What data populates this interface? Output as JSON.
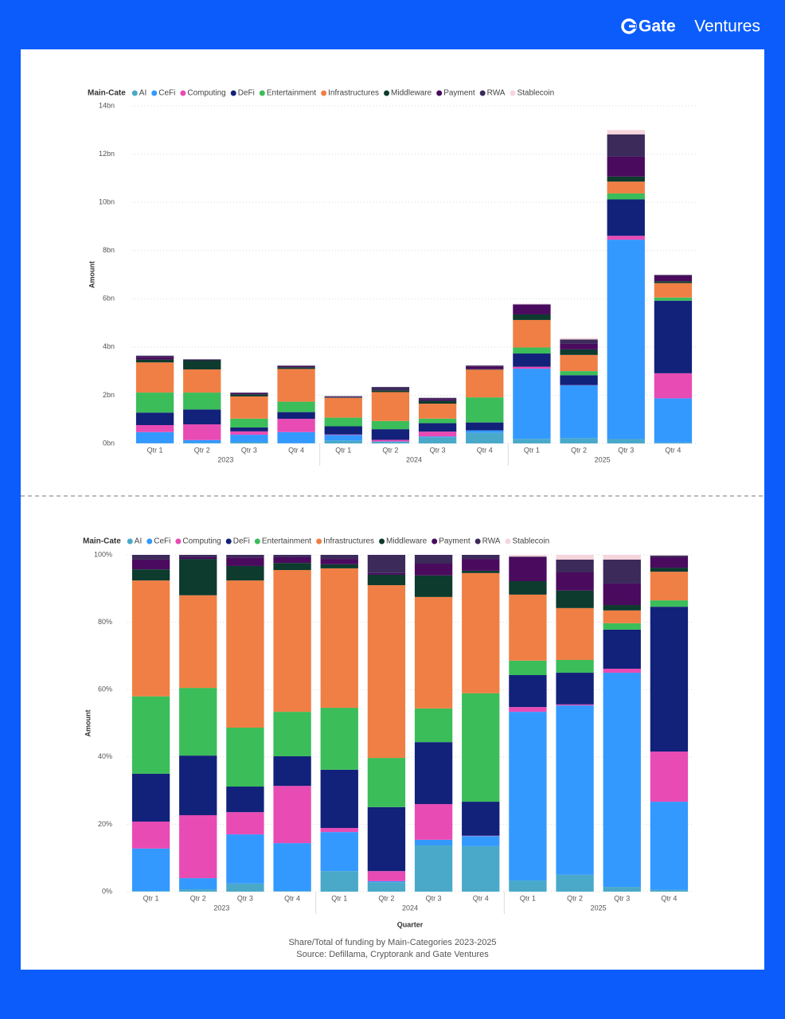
{
  "brand": {
    "name": "Gate",
    "sub": "Ventures"
  },
  "caption": [
    "Share/Total of funding by Main-Categories 2023-2025",
    "Source: Defillama, Cryptorank and Gate Ventures"
  ],
  "chart_data": [
    {
      "type": "bar",
      "stacked": true,
      "legend_title": "Main-Cate",
      "legend_position": "top-left",
      "y_label": "Amount",
      "grid": true,
      "categories": [
        "Qtr 1",
        "Qtr 2",
        "Qtr 3",
        "Qtr 4",
        "Qtr 1",
        "Qtr 2",
        "Qtr 3",
        "Qtr 4",
        "Qtr 1",
        "Qtr 2",
        "Qtr 3",
        "Qtr 4"
      ],
      "groups": [
        "2023",
        "2024",
        "2025"
      ],
      "ylim": [
        0,
        14
      ],
      "yticks": [
        {
          "value": 0,
          "label": "0bn"
        },
        {
          "value": 2,
          "label": "2bn"
        },
        {
          "value": 4,
          "label": "4bn"
        },
        {
          "value": 6,
          "label": "6bn"
        },
        {
          "value": 8,
          "label": "8bn"
        },
        {
          "value": 10,
          "label": "10bn"
        },
        {
          "value": 12,
          "label": "12bn"
        },
        {
          "value": 14,
          "label": "14bn"
        }
      ],
      "series": [
        {
          "name": "AI",
          "color": "#4aa9c9",
          "values": [
            0.01,
            0.02,
            0.05,
            0.01,
            0.12,
            0.07,
            0.26,
            0.44,
            0.19,
            0.22,
            0.18,
            0.04
          ]
        },
        {
          "name": "CeFi",
          "color": "#3399ff",
          "values": [
            0.46,
            0.12,
            0.31,
            0.46,
            0.23,
            0.01,
            0.03,
            0.1,
            2.91,
            2.19,
            8.27,
            1.83
          ]
        },
        {
          "name": "Computing",
          "color": "#e84bb4",
          "values": [
            0.29,
            0.65,
            0.14,
            0.55,
            0.02,
            0.07,
            0.2,
            0,
            0.08,
            0.01,
            0.16,
            1.04
          ]
        },
        {
          "name": "DeFi",
          "color": "#12217a",
          "values": [
            0.52,
            0.62,
            0.16,
            0.28,
            0.34,
            0.44,
            0.35,
            0.33,
            0.55,
            0.41,
            1.51,
            3.01
          ]
        },
        {
          "name": "Entertainment",
          "color": "#3bbd5a",
          "values": [
            0.83,
            0.7,
            0.37,
            0.43,
            0.36,
            0.34,
            0.19,
            1.04,
            0.25,
            0.17,
            0.25,
            0.13
          ]
        },
        {
          "name": "Infrastructures",
          "color": "#f07f45",
          "values": [
            1.25,
            0.96,
            0.92,
            1.36,
            0.82,
            1.2,
            0.62,
            1.15,
            1.14,
            0.67,
            0.49,
            0.6
          ]
        },
        {
          "name": "Middleware",
          "color": "#0d3b2e",
          "values": [
            0.12,
            0.38,
            0.09,
            0.07,
            0.02,
            0.07,
            0.12,
            0.02,
            0.23,
            0.23,
            0.21,
            0.08
          ]
        },
        {
          "name": "Payment",
          "color": "#4a0a5e",
          "values": [
            0.11,
            0.02,
            0.05,
            0.05,
            0.03,
            0.01,
            0.07,
            0.11,
            0.41,
            0.24,
            0.83,
            0.22
          ]
        },
        {
          "name": "RWA",
          "color": "#3b2a5a",
          "values": [
            0.05,
            0.02,
            0.02,
            0.02,
            0.02,
            0.13,
            0.05,
            0.04,
            0.01,
            0.17,
            0.92,
            0.04
          ]
        },
        {
          "name": "Stablecoin",
          "color": "#f5d5dc",
          "values": [
            0,
            0,
            0,
            0,
            0,
            0,
            0,
            0,
            0.03,
            0.06,
            0.18,
            0.01
          ]
        }
      ]
    },
    {
      "type": "bar",
      "stacked": true,
      "legend_title": "Main-Cate",
      "legend_position": "top-left",
      "y_label": "Amount",
      "x_label": "Quarter",
      "grid": true,
      "categories": [
        "Qtr 1",
        "Qtr 2",
        "Qtr 3",
        "Qtr 4",
        "Qtr 1",
        "Qtr 2",
        "Qtr 3",
        "Qtr 4",
        "Qtr 1",
        "Qtr 2",
        "Qtr 3",
        "Qtr 4"
      ],
      "groups": [
        "2023",
        "2024",
        "2025"
      ],
      "ylim": [
        0,
        100
      ],
      "yticks": [
        {
          "value": 0,
          "label": "0%"
        },
        {
          "value": 20,
          "label": "20%"
        },
        {
          "value": 40,
          "label": "40%"
        },
        {
          "value": 60,
          "label": "60%"
        },
        {
          "value": 80,
          "label": "80%"
        },
        {
          "value": 100,
          "label": "100%"
        }
      ],
      "series": [
        {
          "name": "AI",
          "color": "#4aa9c9",
          "values": [
            0.2,
            0.7,
            2.4,
            0.2,
            6.1,
            2.8,
            13.7,
            13.5,
            3.3,
            5,
            1.4,
            0.5
          ]
        },
        {
          "name": "CeFi",
          "color": "#3399ff",
          "values": [
            12.6,
            3.3,
            14.6,
            14.2,
            11.6,
            0.3,
            1.7,
            3,
            50.1,
            50.3,
            63.6,
            26.2
          ]
        },
        {
          "name": "Computing",
          "color": "#e84bb4",
          "values": [
            8,
            18.7,
            6.6,
            17,
            1.2,
            3,
            10.6,
            0.1,
            1.4,
            0.3,
            1.2,
            14.9
          ]
        },
        {
          "name": "DeFi",
          "color": "#12217a",
          "values": [
            14.2,
            17.7,
            7.6,
            8.8,
            17.3,
            19,
            18.4,
            10.1,
            9.5,
            9.4,
            11.6,
            43
          ]
        },
        {
          "name": "Entertainment",
          "color": "#3bbd5a",
          "values": [
            23,
            20.1,
            17.5,
            13.2,
            18.4,
            14.6,
            10,
            32.2,
            4.3,
            3.8,
            1.9,
            1.9
          ]
        },
        {
          "name": "Infrastructures",
          "color": "#f07f45",
          "values": [
            34.4,
            27.5,
            43.7,
            42.1,
            41.4,
            51.3,
            33.1,
            35.7,
            19.6,
            15.4,
            3.8,
            8.5
          ]
        },
        {
          "name": "Middleware",
          "color": "#0d3b2e",
          "values": [
            3.3,
            10.8,
            4.3,
            2.1,
            1.2,
            3.1,
            6.4,
            0.7,
            4,
            5.2,
            1.6,
            1.2
          ]
        },
        {
          "name": "Payment",
          "color": "#4a0a5e",
          "values": [
            2.9,
            0.5,
            2.5,
            1.7,
            1.6,
            0.5,
            3.5,
            3.5,
            7.1,
            5.4,
            6.4,
            3.1
          ]
        },
        {
          "name": "RWA",
          "color": "#3b2a5a",
          "values": [
            1.4,
            0.7,
            0.8,
            0.7,
            1.2,
            5.4,
            2.6,
            1.2,
            0.2,
            3.8,
            7.1,
            0.5
          ]
        },
        {
          "name": "Stablecoin",
          "color": "#f5d5dc",
          "values": [
            0,
            0,
            0,
            0,
            0,
            0,
            0,
            0,
            0.5,
            1.4,
            1.4,
            0.2
          ]
        }
      ]
    }
  ]
}
